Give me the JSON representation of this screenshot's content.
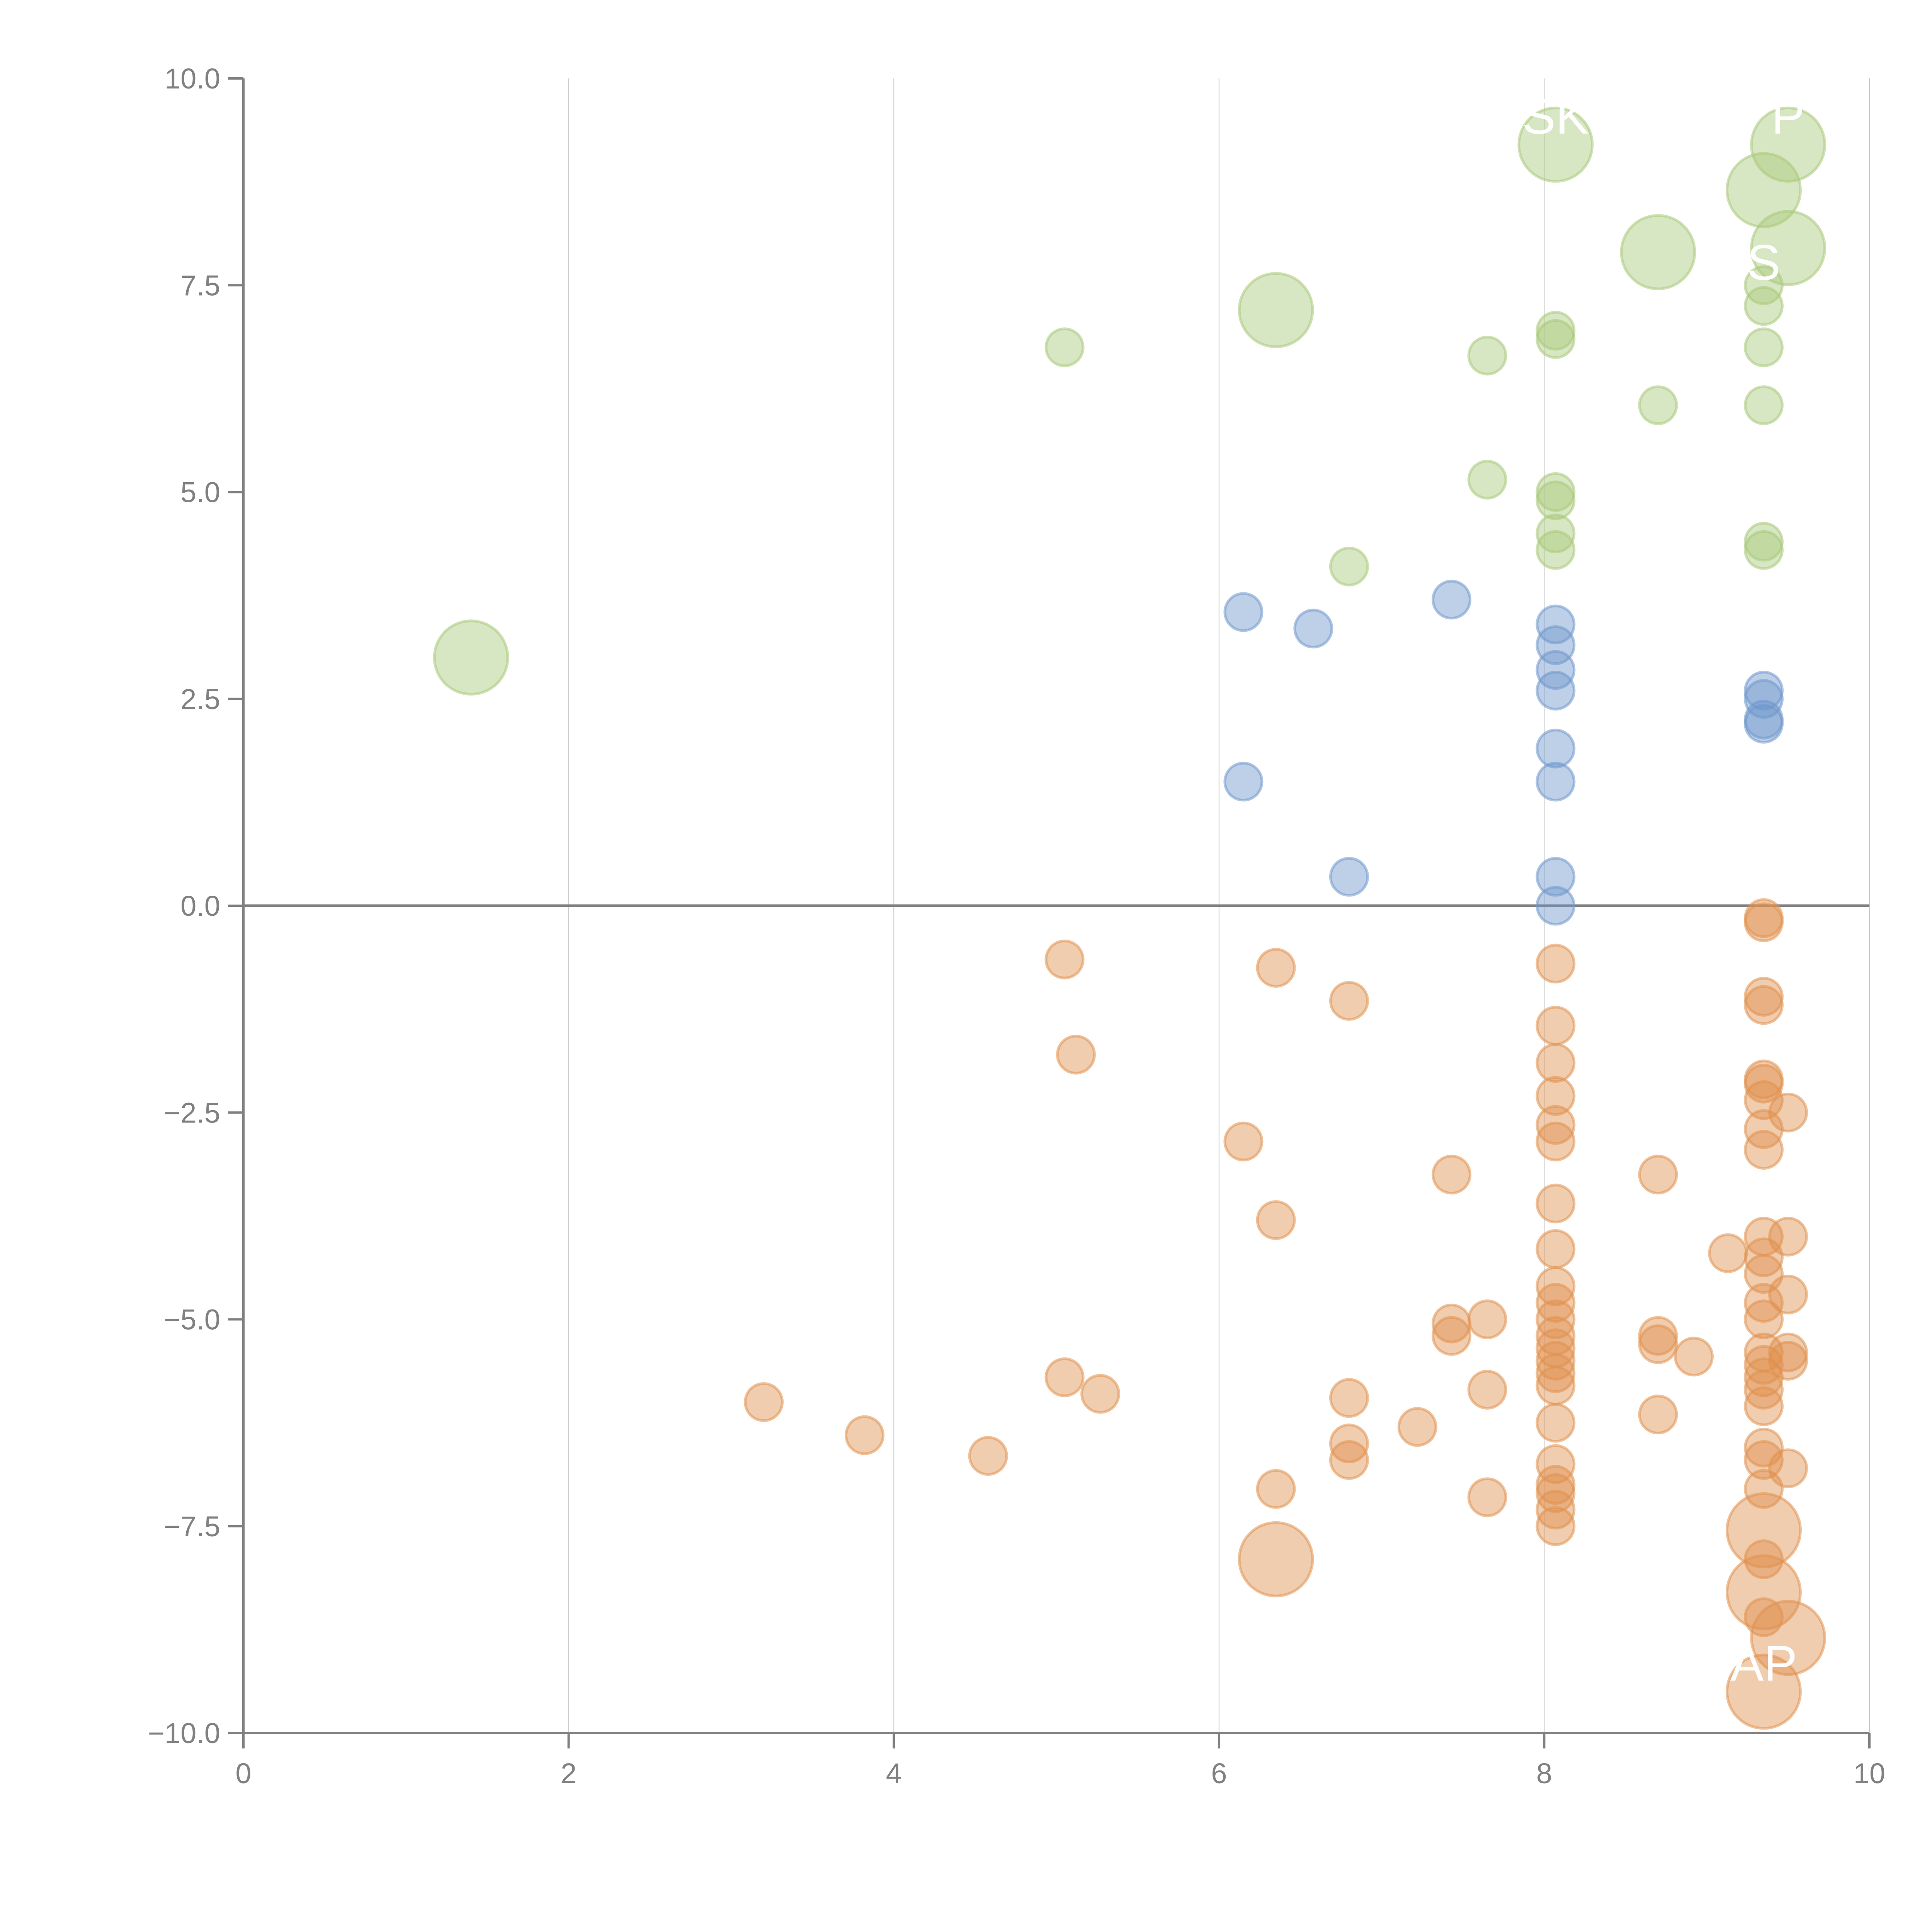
{
  "chart_data": {
    "type": "scatter",
    "title": "",
    "xlabel": "",
    "ylabel": "",
    "xlim": [
      0,
      10
    ],
    "ylim": [
      -10,
      10
    ],
    "xticks": [
      "0",
      "2",
      "4",
      "6",
      "8",
      "10"
    ],
    "yticks": [
      "−10.0",
      "−7.5",
      "−5.0",
      "−2.5",
      "0.0",
      "2.5",
      "5.0",
      "7.5",
      "10.0"
    ],
    "grid": "vertical",
    "zero_line": true,
    "legend": "none",
    "colors": {
      "green": "#a9c97a",
      "blue": "#6f97cc",
      "orange": "#e0914e",
      "axis": "#808080"
    },
    "series": [
      {
        "name": "green",
        "color": "#a9c97a",
        "points": [
          {
            "x": 1.4,
            "y": 3.0,
            "size": "large"
          },
          {
            "x": 5.05,
            "y": 6.75,
            "size": "small"
          },
          {
            "x": 6.35,
            "y": 7.2,
            "size": "large"
          },
          {
            "x": 6.8,
            "y": 4.1,
            "size": "small"
          },
          {
            "x": 7.65,
            "y": 6.65,
            "size": "small"
          },
          {
            "x": 7.65,
            "y": 5.15,
            "size": "small"
          },
          {
            "x": 8.07,
            "y": 9.2,
            "size": "large",
            "label": "SK"
          },
          {
            "x": 8.07,
            "y": 6.95,
            "size": "small"
          },
          {
            "x": 8.07,
            "y": 6.85,
            "size": "small"
          },
          {
            "x": 8.07,
            "y": 5.0,
            "size": "small"
          },
          {
            "x": 8.07,
            "y": 4.9,
            "size": "small"
          },
          {
            "x": 8.07,
            "y": 4.5,
            "size": "small"
          },
          {
            "x": 8.07,
            "y": 4.3,
            "size": "small"
          },
          {
            "x": 8.7,
            "y": 7.9,
            "size": "large"
          },
          {
            "x": 8.7,
            "y": 6.05,
            "size": "small"
          },
          {
            "x": 9.35,
            "y": 8.65,
            "size": "large"
          },
          {
            "x": 9.5,
            "y": 9.2,
            "size": "large",
            "label": "P"
          },
          {
            "x": 9.5,
            "y": 7.95,
            "size": "large"
          },
          {
            "x": 9.35,
            "y": 7.5,
            "size": "small",
            "label": "S"
          },
          {
            "x": 9.35,
            "y": 7.25,
            "size": "small"
          },
          {
            "x": 9.35,
            "y": 6.75,
            "size": "small"
          },
          {
            "x": 9.35,
            "y": 6.05,
            "size": "small"
          },
          {
            "x": 9.35,
            "y": 4.4,
            "size": "small"
          },
          {
            "x": 9.35,
            "y": 4.3,
            "size": "small"
          }
        ]
      },
      {
        "name": "blue",
        "color": "#6f97cc",
        "points": [
          {
            "x": 6.15,
            "y": 3.55,
            "size": "small"
          },
          {
            "x": 6.58,
            "y": 3.35,
            "size": "small"
          },
          {
            "x": 7.43,
            "y": 3.7,
            "size": "small"
          },
          {
            "x": 6.15,
            "y": 1.5,
            "size": "small"
          },
          {
            "x": 6.8,
            "y": 0.35,
            "size": "small"
          },
          {
            "x": 8.07,
            "y": 3.4,
            "size": "small"
          },
          {
            "x": 8.07,
            "y": 3.15,
            "size": "small"
          },
          {
            "x": 8.07,
            "y": 2.85,
            "size": "small"
          },
          {
            "x": 8.07,
            "y": 2.6,
            "size": "small"
          },
          {
            "x": 8.07,
            "y": 1.9,
            "size": "small"
          },
          {
            "x": 8.07,
            "y": 1.5,
            "size": "small"
          },
          {
            "x": 8.07,
            "y": 0.35,
            "size": "small"
          },
          {
            "x": 8.07,
            "y": 0.0,
            "size": "small"
          },
          {
            "x": 9.35,
            "y": 2.6,
            "size": "small"
          },
          {
            "x": 9.35,
            "y": 2.5,
            "size": "small"
          },
          {
            "x": 9.35,
            "y": 2.25,
            "size": "small"
          },
          {
            "x": 9.35,
            "y": 2.2,
            "size": "small"
          }
        ]
      },
      {
        "name": "orange",
        "color": "#e0914e",
        "points": [
          {
            "x": 3.2,
            "y": -6.0,
            "size": "small"
          },
          {
            "x": 3.82,
            "y": -6.4,
            "size": "small"
          },
          {
            "x": 4.58,
            "y": -6.65,
            "size": "small"
          },
          {
            "x": 5.05,
            "y": -0.65,
            "size": "small"
          },
          {
            "x": 5.12,
            "y": -1.8,
            "size": "small"
          },
          {
            "x": 5.05,
            "y": -5.7,
            "size": "small"
          },
          {
            "x": 5.27,
            "y": -5.9,
            "size": "small"
          },
          {
            "x": 6.15,
            "y": -2.85,
            "size": "small"
          },
          {
            "x": 6.35,
            "y": -0.75,
            "size": "small"
          },
          {
            "x": 6.35,
            "y": -3.8,
            "size": "small"
          },
          {
            "x": 6.35,
            "y": -7.05,
            "size": "small"
          },
          {
            "x": 6.35,
            "y": -7.9,
            "size": "large"
          },
          {
            "x": 6.8,
            "y": -1.15,
            "size": "small"
          },
          {
            "x": 6.8,
            "y": -5.95,
            "size": "small"
          },
          {
            "x": 6.8,
            "y": -6.5,
            "size": "small"
          },
          {
            "x": 6.8,
            "y": -6.7,
            "size": "small"
          },
          {
            "x": 7.22,
            "y": -6.3,
            "size": "small"
          },
          {
            "x": 7.43,
            "y": -3.25,
            "size": "small"
          },
          {
            "x": 7.43,
            "y": -5.05,
            "size": "small"
          },
          {
            "x": 7.43,
            "y": -5.2,
            "size": "small"
          },
          {
            "x": 7.65,
            "y": -5.0,
            "size": "small"
          },
          {
            "x": 7.65,
            "y": -5.85,
            "size": "small"
          },
          {
            "x": 7.65,
            "y": -7.15,
            "size": "small"
          },
          {
            "x": 8.07,
            "y": -0.7,
            "size": "small"
          },
          {
            "x": 8.07,
            "y": -1.45,
            "size": "small"
          },
          {
            "x": 8.07,
            "y": -1.9,
            "size": "small"
          },
          {
            "x": 8.07,
            "y": -2.3,
            "size": "small"
          },
          {
            "x": 8.07,
            "y": -2.65,
            "size": "small"
          },
          {
            "x": 8.07,
            "y": -2.85,
            "size": "small"
          },
          {
            "x": 8.07,
            "y": -3.6,
            "size": "small"
          },
          {
            "x": 8.07,
            "y": -4.15,
            "size": "small"
          },
          {
            "x": 8.07,
            "y": -4.6,
            "size": "small"
          },
          {
            "x": 8.07,
            "y": -4.8,
            "size": "small"
          },
          {
            "x": 8.07,
            "y": -5.0,
            "size": "small"
          },
          {
            "x": 8.07,
            "y": -5.2,
            "size": "small"
          },
          {
            "x": 8.07,
            "y": -5.35,
            "size": "small"
          },
          {
            "x": 8.07,
            "y": -5.5,
            "size": "small"
          },
          {
            "x": 8.07,
            "y": -5.65,
            "size": "small"
          },
          {
            "x": 8.07,
            "y": -5.8,
            "size": "small"
          },
          {
            "x": 8.07,
            "y": -6.25,
            "size": "small"
          },
          {
            "x": 8.07,
            "y": -6.75,
            "size": "small"
          },
          {
            "x": 8.07,
            "y": -7.0,
            "size": "small"
          },
          {
            "x": 8.07,
            "y": -7.1,
            "size": "small"
          },
          {
            "x": 8.07,
            "y": -7.3,
            "size": "small"
          },
          {
            "x": 8.07,
            "y": -7.5,
            "size": "small"
          },
          {
            "x": 8.7,
            "y": -3.25,
            "size": "small"
          },
          {
            "x": 8.7,
            "y": -5.2,
            "size": "small"
          },
          {
            "x": 8.7,
            "y": -5.3,
            "size": "small"
          },
          {
            "x": 8.7,
            "y": -6.15,
            "size": "small"
          },
          {
            "x": 8.92,
            "y": -5.45,
            "size": "small"
          },
          {
            "x": 9.13,
            "y": -4.2,
            "size": "small"
          },
          {
            "x": 9.35,
            "y": -0.15,
            "size": "small"
          },
          {
            "x": 9.35,
            "y": -0.2,
            "size": "small"
          },
          {
            "x": 9.35,
            "y": -1.1,
            "size": "small"
          },
          {
            "x": 9.35,
            "y": -1.2,
            "size": "small"
          },
          {
            "x": 9.35,
            "y": -2.1,
            "size": "small"
          },
          {
            "x": 9.35,
            "y": -2.15,
            "size": "small"
          },
          {
            "x": 9.35,
            "y": -2.35,
            "size": "small"
          },
          {
            "x": 9.35,
            "y": -2.7,
            "size": "small"
          },
          {
            "x": 9.35,
            "y": -2.95,
            "size": "small"
          },
          {
            "x": 9.35,
            "y": -4.0,
            "size": "small"
          },
          {
            "x": 9.35,
            "y": -4.25,
            "size": "small"
          },
          {
            "x": 9.35,
            "y": -4.45,
            "size": "small"
          },
          {
            "x": 9.35,
            "y": -4.8,
            "size": "small"
          },
          {
            "x": 9.35,
            "y": -5.0,
            "size": "small"
          },
          {
            "x": 9.35,
            "y": -5.4,
            "size": "small"
          },
          {
            "x": 9.35,
            "y": -5.55,
            "size": "small"
          },
          {
            "x": 9.35,
            "y": -5.7,
            "size": "small"
          },
          {
            "x": 9.35,
            "y": -5.85,
            "size": "small"
          },
          {
            "x": 9.35,
            "y": -6.05,
            "size": "small"
          },
          {
            "x": 9.35,
            "y": -6.55,
            "size": "small"
          },
          {
            "x": 9.35,
            "y": -6.7,
            "size": "small"
          },
          {
            "x": 9.35,
            "y": -7.05,
            "size": "small"
          },
          {
            "x": 9.35,
            "y": -7.55,
            "size": "large"
          },
          {
            "x": 9.35,
            "y": -7.9,
            "size": "small"
          },
          {
            "x": 9.35,
            "y": -8.3,
            "size": "large"
          },
          {
            "x": 9.35,
            "y": -8.6,
            "size": "small"
          },
          {
            "x": 9.35,
            "y": -9.5,
            "size": "large",
            "label": "AP"
          },
          {
            "x": 9.5,
            "y": -2.5,
            "size": "small"
          },
          {
            "x": 9.5,
            "y": -4.0,
            "size": "small"
          },
          {
            "x": 9.5,
            "y": -4.7,
            "size": "small"
          },
          {
            "x": 9.5,
            "y": -5.4,
            "size": "small"
          },
          {
            "x": 9.5,
            "y": -5.5,
            "size": "small"
          },
          {
            "x": 9.5,
            "y": -6.8,
            "size": "small"
          },
          {
            "x": 9.5,
            "y": -8.85,
            "size": "large"
          }
        ]
      }
    ]
  }
}
